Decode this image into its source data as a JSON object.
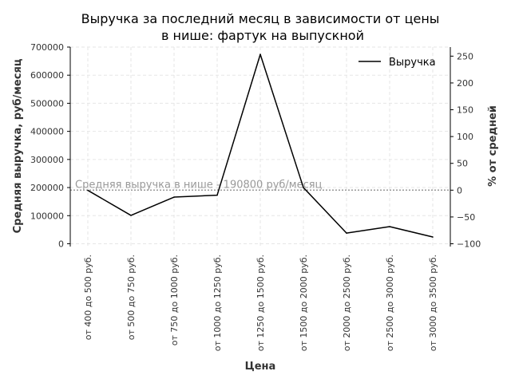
{
  "chart_data": {
    "type": "line",
    "title_lines": [
      "Выручка за последний месяц в зависимости от цены",
      "в нише: фартук на выпускной"
    ],
    "xlabel": "Цена",
    "ylabel": "Средняя выручка, руб/месяц",
    "ylabel_right": "% от средней",
    "categories": [
      "от 400 до 500 руб.",
      "от 500 до 750 руб.",
      "от 750 до 1000 руб.",
      "от 1000 до 1250 руб.",
      "от 1250 до 1500 руб.",
      "от 1500 до 2000 руб.",
      "от 2000 до 2500 руб.",
      "от 2500 до 3000 руб.",
      "от 3000 до 3500 руб."
    ],
    "series": [
      {
        "name": "Выручка",
        "color": "#000000",
        "values": [
          190000,
          101000,
          166000,
          173000,
          674000,
          200000,
          38000,
          61000,
          24000
        ]
      }
    ],
    "average": {
      "value": 190800,
      "label": "Средняя выручка в нише - 190800 руб/месяц",
      "color": "#999999"
    },
    "ylim": [
      -10000,
      700000
    ],
    "yticks": [
      0,
      100000,
      200000,
      300000,
      400000,
      500000,
      600000,
      700000
    ],
    "ylim_right": [
      -105.2,
      266.9
    ],
    "yticks_right": [
      -100,
      -50,
      0,
      50,
      100,
      150,
      200,
      250
    ],
    "grid": true,
    "legend_position": "top-right"
  }
}
